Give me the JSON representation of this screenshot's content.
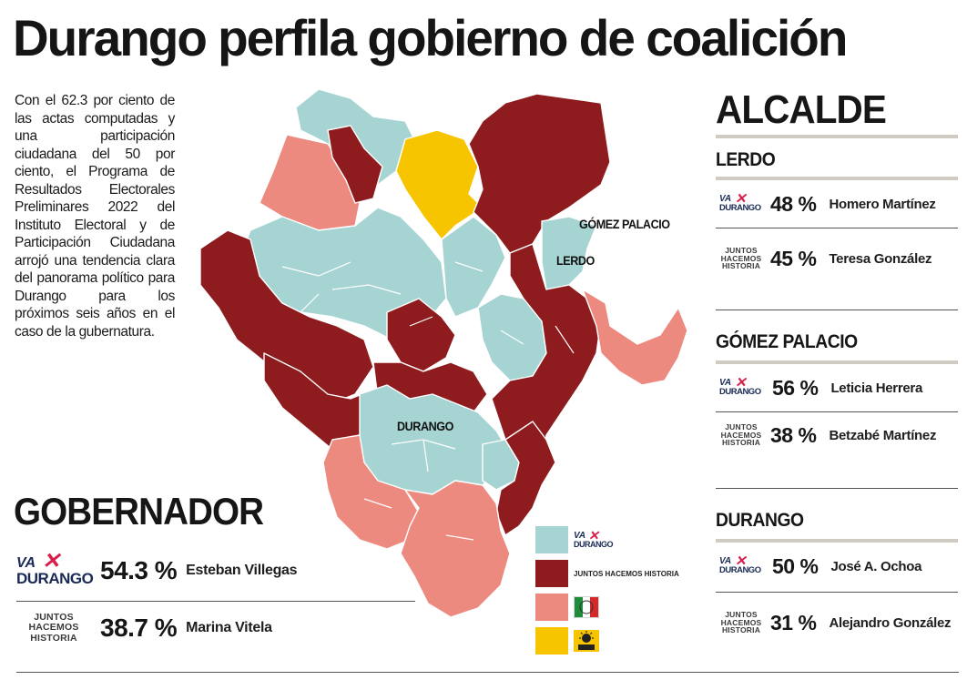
{
  "headline": "Durango perfila gobierno de coalición",
  "intro": "Con el  62.3 por ciento de las actas computadas y una participación ciudadana  del 50 por ciento, el Programa de Resultados Electorales Preliminares 2022 del Instituto Electoral y de Participación Ciudadana arrojó una tendencia clara del panorama político para Durango para los próximos seis años en el caso de la gubernatura.",
  "colors": {
    "va_por_durango": "#a6d4d2",
    "juntos_hacemos_historia": "#8e1b1e",
    "pri": "#ec8a80",
    "prd": "#f7c500"
  },
  "logos": {
    "va": "VA",
    "durango": "DURANGO",
    "juntos": [
      "JUNTOS",
      "HACEMOS",
      "HISTORIA"
    ],
    "juntos_inline": "JUNTOS HACEMOS HISTORIA"
  },
  "map": {
    "labels": {
      "gomez_palacio": "GÓMEZ PALACIO",
      "lerdo": "LERDO",
      "durango": "DURANGO"
    }
  },
  "gobernador": {
    "title": "GOBERNADOR",
    "results": [
      {
        "party": "va-por-durango",
        "pct": "54.3 %",
        "candidate": "Esteban Villegas"
      },
      {
        "party": "juntos-hacemos-historia",
        "pct": "38.7 %",
        "candidate": "Marina Vitela"
      }
    ]
  },
  "alcalde": {
    "title": "ALCALDE",
    "cities": [
      {
        "name": "LERDO",
        "results": [
          {
            "party": "va-por-durango",
            "pct": "48 %",
            "candidate": "Homero Martínez"
          },
          {
            "party": "juntos-hacemos-historia",
            "pct": "45 %",
            "candidate": "Teresa González"
          }
        ]
      },
      {
        "name": "GÓMEZ PALACIO",
        "results": [
          {
            "party": "va-por-durango",
            "pct": "56 %",
            "candidate": "Leticia Herrera"
          },
          {
            "party": "juntos-hacemos-historia",
            "pct": "38 %",
            "candidate": "Betzabé Martínez"
          }
        ]
      },
      {
        "name": "DURANGO",
        "results": [
          {
            "party": "va-por-durango",
            "pct": "50 %",
            "candidate": "José A. Ochoa"
          },
          {
            "party": "juntos-hacemos-historia",
            "pct": "31 %",
            "candidate": "Alejandro González"
          }
        ]
      }
    ]
  }
}
